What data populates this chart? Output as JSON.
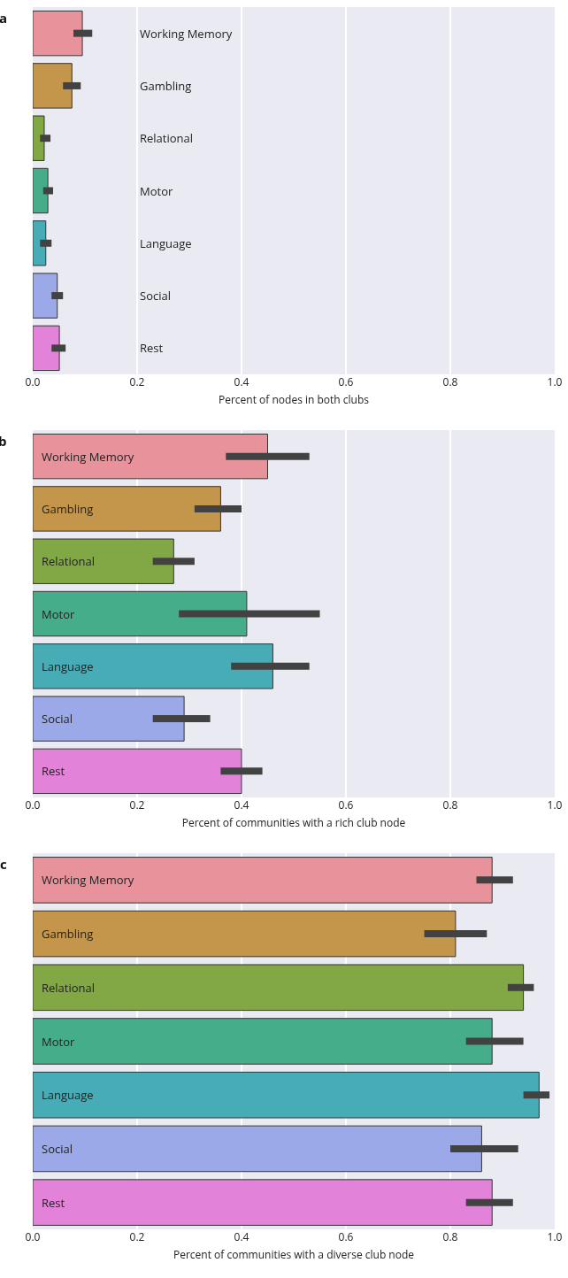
{
  "chart_data": [
    {
      "type": "bar",
      "orientation": "horizontal",
      "title": "a",
      "xlabel": "Percent of nodes in both clubs",
      "categories": [
        "Working Memory",
        "Gambling",
        "Relational",
        "Motor",
        "Language",
        "Social",
        "Rest"
      ],
      "values": [
        0.095,
        0.075,
        0.022,
        0.029,
        0.025,
        0.047,
        0.051
      ],
      "errors": [
        [
          0.078,
          0.114
        ],
        [
          0.058,
          0.092
        ],
        [
          0.014,
          0.034
        ],
        [
          0.02,
          0.039
        ],
        [
          0.014,
          0.036
        ],
        [
          0.036,
          0.058
        ],
        [
          0.036,
          0.063
        ]
      ],
      "colors": [
        "#e8929b",
        "#c4964b",
        "#82a845",
        "#46ad8b",
        "#48acb6",
        "#9ca9e8",
        "#e282d9"
      ],
      "xlim": [
        0,
        1
      ],
      "xticks": [
        {
          "value": 0,
          "label": "0.0"
        },
        {
          "value": 0.2,
          "label": "0.2"
        },
        {
          "value": 0.4,
          "label": "0.4"
        },
        {
          "value": 0.6,
          "label": "0.6"
        },
        {
          "value": 0.8,
          "label": "0.8"
        },
        {
          "value": 1,
          "label": "1.0"
        }
      ],
      "grid": "x",
      "tick_labels": "x"
    },
    {
      "type": "bar",
      "orientation": "horizontal",
      "title": "b",
      "xlabel": "Percent of communities with a rich club node",
      "categories": [
        "Working Memory",
        "Gambling",
        "Relational",
        "Motor",
        "Language",
        "Social",
        "Rest"
      ],
      "values": [
        0.45,
        0.36,
        0.27,
        0.41,
        0.46,
        0.29,
        0.4
      ],
      "errors": [
        [
          0.37,
          0.53
        ],
        [
          0.31,
          0.4
        ],
        [
          0.23,
          0.31
        ],
        [
          0.28,
          0.55
        ],
        [
          0.38,
          0.53
        ],
        [
          0.23,
          0.34
        ],
        [
          0.36,
          0.44
        ]
      ],
      "colors": [
        "#e8929b",
        "#c4964b",
        "#82a845",
        "#46ad8b",
        "#48acb6",
        "#9ca9e8",
        "#e282d9"
      ],
      "xlim": [
        0,
        1
      ],
      "xticks": [
        {
          "value": 0,
          "label": "0.0"
        },
        {
          "value": 0.2,
          "label": "0.2"
        },
        {
          "value": 0.4,
          "label": "0.4"
        },
        {
          "value": 0.6,
          "label": "0.6"
        },
        {
          "value": 0.8,
          "label": "0.8"
        },
        {
          "value": 1,
          "label": "1.0"
        }
      ],
      "grid": "x",
      "tick_labels": "x"
    },
    {
      "type": "bar",
      "orientation": "horizontal",
      "title": "c",
      "xlabel": "Percent of communities with a diverse club node",
      "categories": [
        "Working Memory",
        "Gambling",
        "Relational",
        "Motor",
        "Language",
        "Social",
        "Rest"
      ],
      "values": [
        0.88,
        0.81,
        0.94,
        0.88,
        0.97,
        0.86,
        0.88
      ],
      "errors": [
        [
          0.85,
          0.92
        ],
        [
          0.75,
          0.87
        ],
        [
          0.91,
          0.96
        ],
        [
          0.83,
          0.94
        ],
        [
          0.94,
          0.99
        ],
        [
          0.8,
          0.93
        ],
        [
          0.83,
          0.92
        ]
      ],
      "colors": [
        "#e8929b",
        "#c4964b",
        "#82a845",
        "#46ad8b",
        "#48acb6",
        "#9ca9e8",
        "#e282d9"
      ],
      "xlim": [
        0,
        1
      ],
      "xticks": [
        {
          "value": 0,
          "label": "0.0"
        },
        {
          "value": 0.2,
          "label": "0.2"
        },
        {
          "value": 0.4,
          "label": "0.4"
        },
        {
          "value": 0.6,
          "label": "0.6"
        },
        {
          "value": 0.8,
          "label": "0.8"
        },
        {
          "value": 1,
          "label": "1.0"
        }
      ],
      "grid": "x",
      "tick_labels": "x"
    }
  ]
}
